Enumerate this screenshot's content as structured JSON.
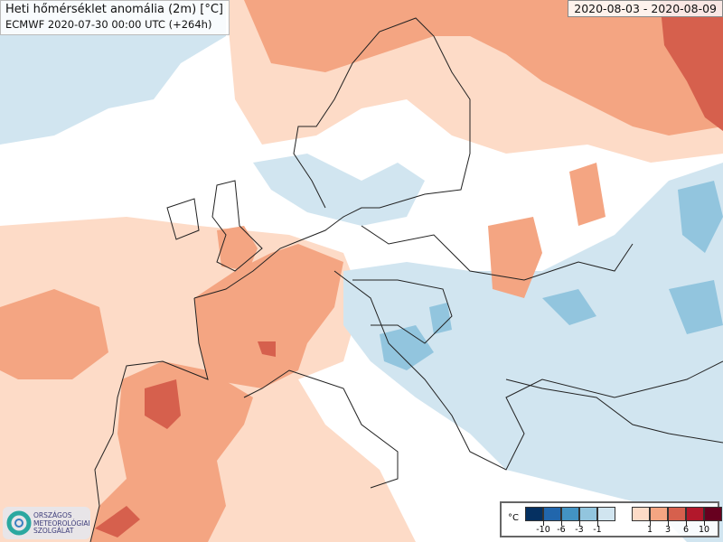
{
  "header": {
    "title": "Heti hőmérséklet anomália (2m) [°C]",
    "subtitle": "ECMWF 2020-07-30 00:00 UTC (+264h)",
    "period": "2020-08-03 - 2020-08-09"
  },
  "legend": {
    "unit": "°C",
    "colors": [
      "#053061",
      "#2166ac",
      "#4393c3",
      "#92c5de",
      "#d1e5f0",
      "#fddbc7",
      "#f4a582",
      "#d6604d",
      "#b2182b",
      "#67001f"
    ],
    "ticks": [
      "-10",
      "-6",
      "-3",
      "-1",
      "1",
      "3",
      "6",
      "10"
    ]
  },
  "logo": {
    "lines": [
      "ORSZÁGOS",
      "METEOROLÓGIAI",
      "SZOLGÁLAT"
    ]
  },
  "colors": {
    "light_blue": "#d1e5f0",
    "mid_blue": "#92c5de",
    "light_red": "#fddbc7",
    "mid_red": "#f4a582",
    "dark_red": "#d6604d"
  }
}
